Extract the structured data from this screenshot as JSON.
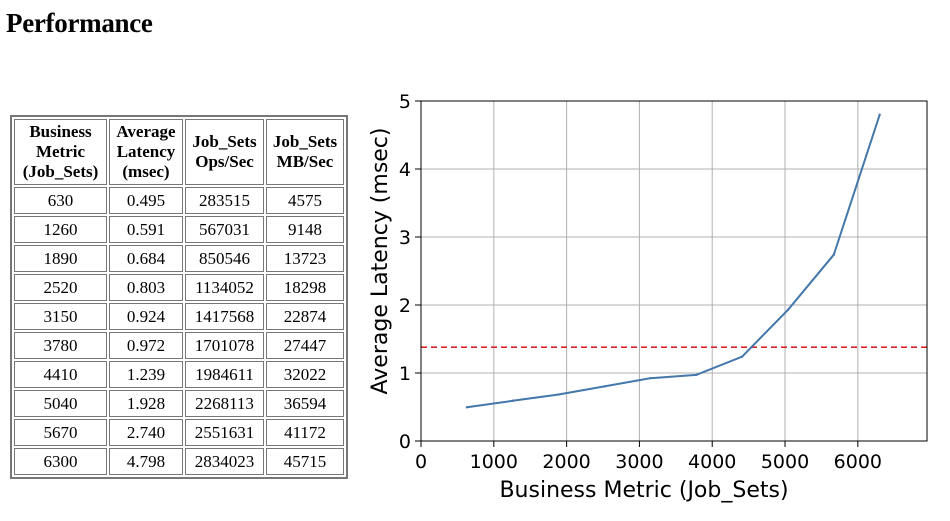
{
  "page": {
    "title": "Performance"
  },
  "table": {
    "headers": [
      [
        "Business",
        "Metric",
        "(Job_Sets)"
      ],
      [
        "Average",
        "Latency",
        "(msec)"
      ],
      [
        "Job_Sets",
        "Ops/Sec"
      ],
      [
        "Job_Sets",
        "MB/Sec"
      ]
    ],
    "rows": [
      [
        "630",
        "0.495",
        "283515",
        "4575"
      ],
      [
        "1260",
        "0.591",
        "567031",
        "9148"
      ],
      [
        "1890",
        "0.684",
        "850546",
        "13723"
      ],
      [
        "2520",
        "0.803",
        "1134052",
        "18298"
      ],
      [
        "3150",
        "0.924",
        "1417568",
        "22874"
      ],
      [
        "3780",
        "0.972",
        "1701078",
        "27447"
      ],
      [
        "4410",
        "1.239",
        "1984611",
        "32022"
      ],
      [
        "5040",
        "1.928",
        "2268113",
        "36594"
      ],
      [
        "5670",
        "2.740",
        "2551631",
        "41172"
      ],
      [
        "6300",
        "4.798",
        "2834023",
        "45715"
      ]
    ]
  },
  "chart_data": {
    "type": "line",
    "xlabel": "Business Metric (Job_Sets)",
    "ylabel": "Average Latency (msec)",
    "xlim": [
      0,
      6950
    ],
    "ylim": [
      0,
      5
    ],
    "xticks": [
      0,
      1000,
      2000,
      3000,
      4000,
      5000,
      6000
    ],
    "yticks": [
      0,
      1,
      2,
      3,
      4,
      5
    ],
    "grid": true,
    "series": [
      {
        "color": "#4477aa",
        "x": [
          630,
          1260,
          1890,
          2520,
          3150,
          3780,
          4410,
          5040,
          5670,
          6300
        ],
        "y": [
          0.495,
          0.591,
          0.684,
          0.803,
          0.924,
          0.972,
          1.239,
          1.928,
          2.74,
          4.798
        ]
      }
    ],
    "reference_line": {
      "axis": "y",
      "value": 1.38,
      "color": "#d62728",
      "style": "dashed"
    }
  }
}
